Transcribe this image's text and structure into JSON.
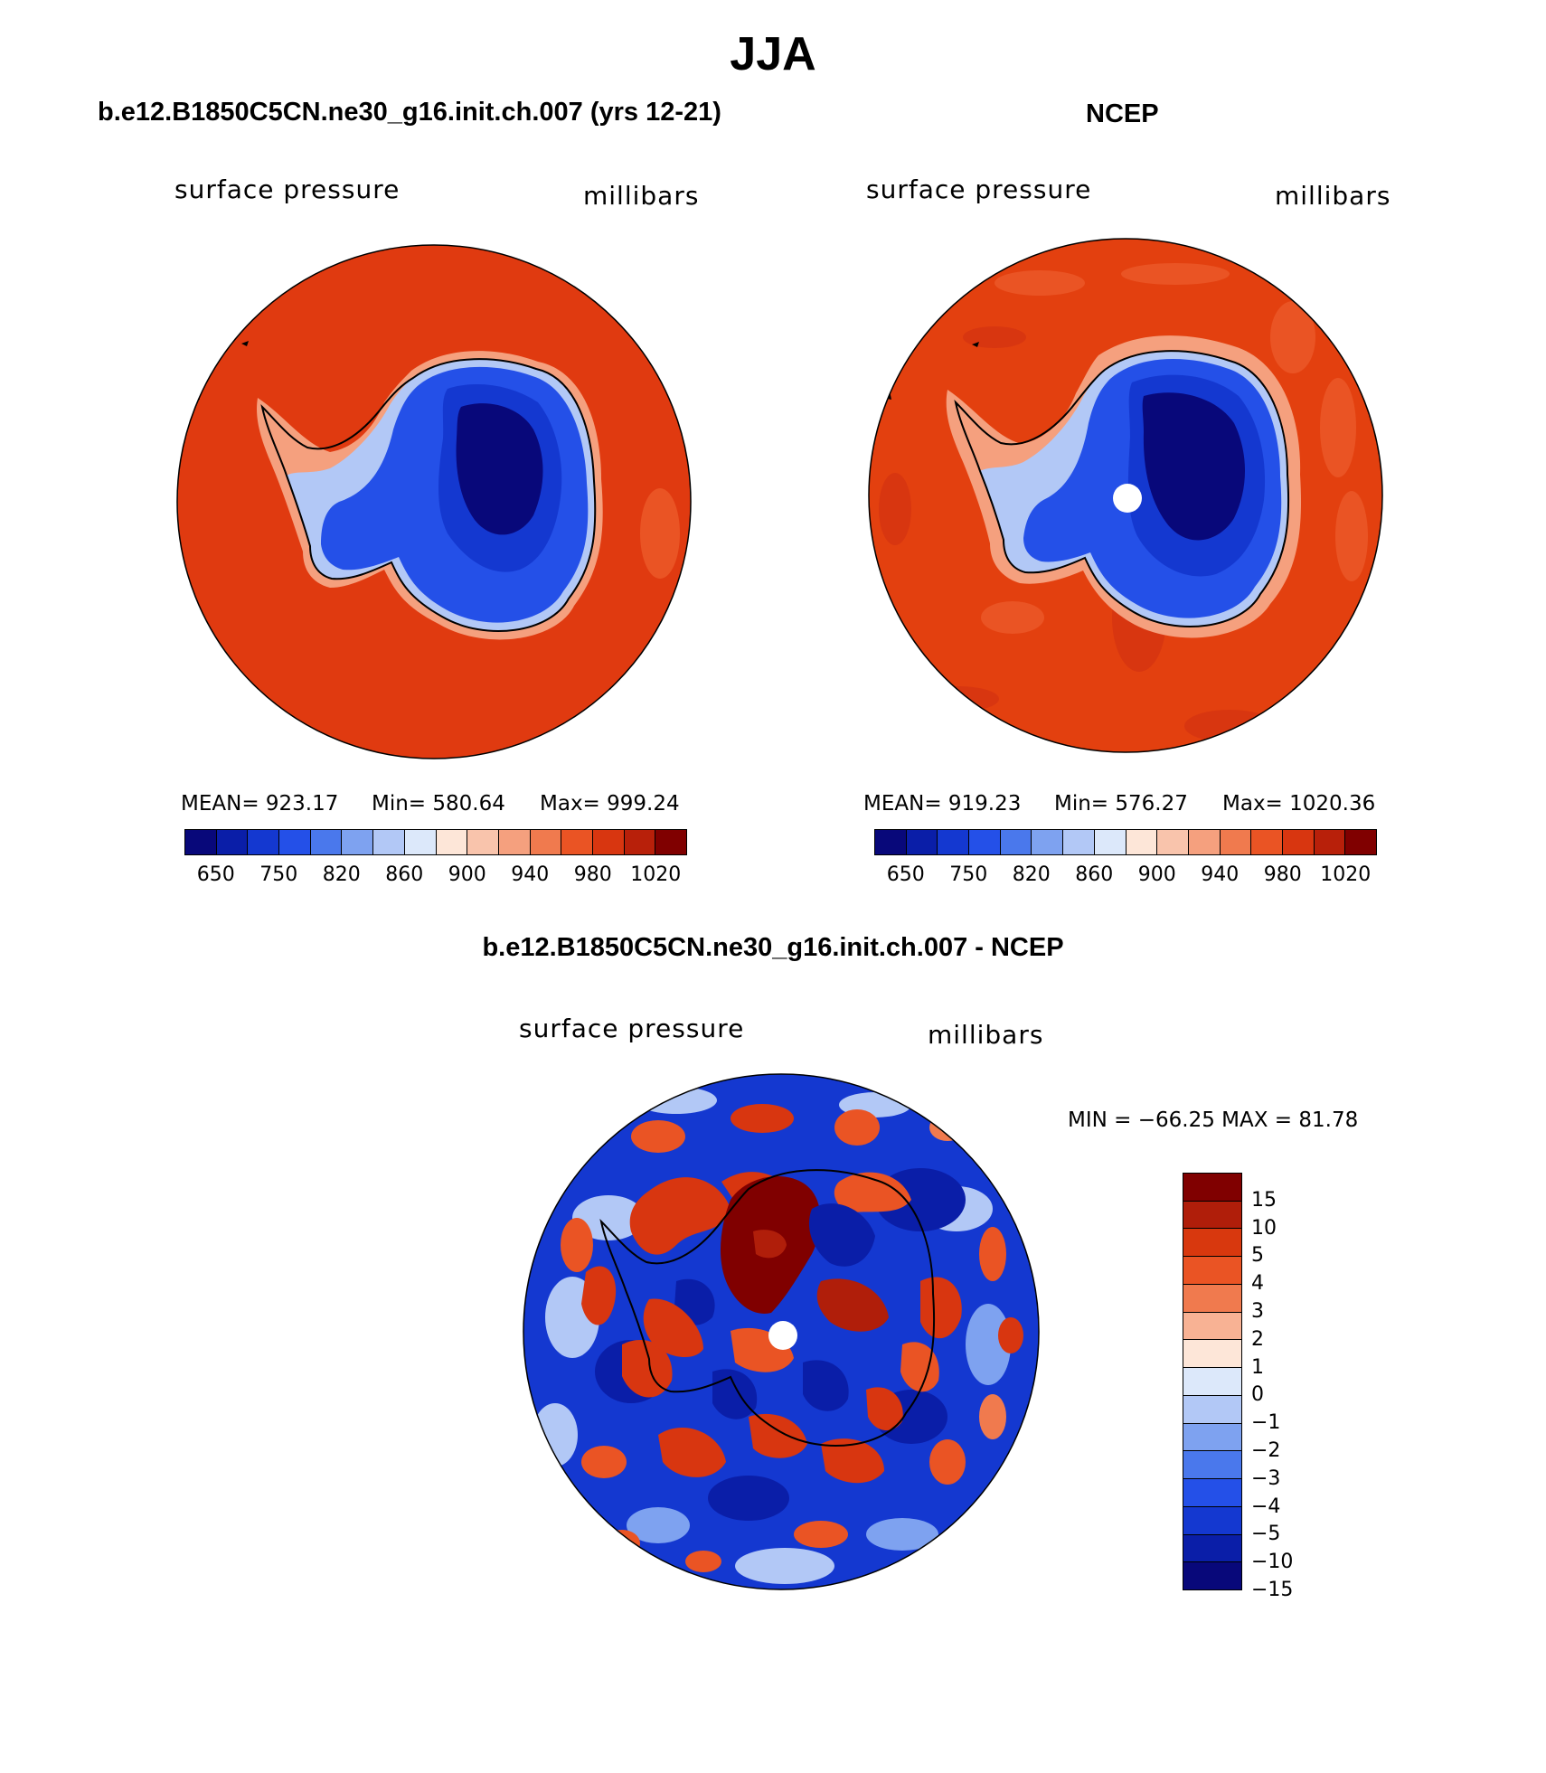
{
  "page_title": "JJA",
  "panels": [
    {
      "title": "b.e12.B1850C5CN.ne30_g16.init.ch.007 (yrs 12-21)",
      "left_label": "surface pressure",
      "right_label": "millibars",
      "stats": {
        "mean": "MEAN= 923.17",
        "min": "Min= 580.64",
        "max": "Max= 999.24"
      },
      "colorbar_ticks": [
        "650",
        "750",
        "820",
        "860",
        "900",
        "940",
        "980",
        "1020"
      ]
    },
    {
      "title": "NCEP",
      "left_label": "surface pressure",
      "right_label": "millibars",
      "stats": {
        "mean": "MEAN= 919.23",
        "min": "Min= 576.27",
        "max": "Max= 1020.36"
      },
      "colorbar_ticks": [
        "650",
        "750",
        "820",
        "860",
        "900",
        "940",
        "980",
        "1020"
      ]
    }
  ],
  "diff_panel": {
    "title": "b.e12.B1850C5CN.ne30_g16.init.ch.007 - NCEP",
    "left_label": "surface pressure",
    "right_label": "millibars",
    "minmax": "MIN = −66.25 MAX =  81.78",
    "colorbar_ticks": [
      "15",
      "10",
      "5",
      "4",
      "3",
      "2",
      "1",
      "0",
      "−1",
      "−2",
      "−3",
      "−4",
      "−5",
      "−10",
      "−15"
    ]
  },
  "colors": {
    "abs_scale": [
      "#08087a",
      "#0a1ea8",
      "#1438d0",
      "#2450e8",
      "#4a78ec",
      "#7ea2f0",
      "#b2c8f6",
      "#dce8fa",
      "#fde6d8",
      "#f9c4ac",
      "#f5a07e",
      "#f07a4e",
      "#ea5424",
      "#d83610",
      "#b8200a",
      "#800000"
    ],
    "diff_scale": [
      "#800000",
      "#b01e0a",
      "#d8380e",
      "#ea5424",
      "#f07a4e",
      "#f8b294",
      "#fde6d8",
      "#dce8fa",
      "#b2c8f6",
      "#7ea2f0",
      "#4a78ec",
      "#2450e8",
      "#1438d0",
      "#0a1ea8",
      "#08087a"
    ],
    "ocean_model": "#e03a10",
    "ocean_obs": "#e3400f"
  }
}
